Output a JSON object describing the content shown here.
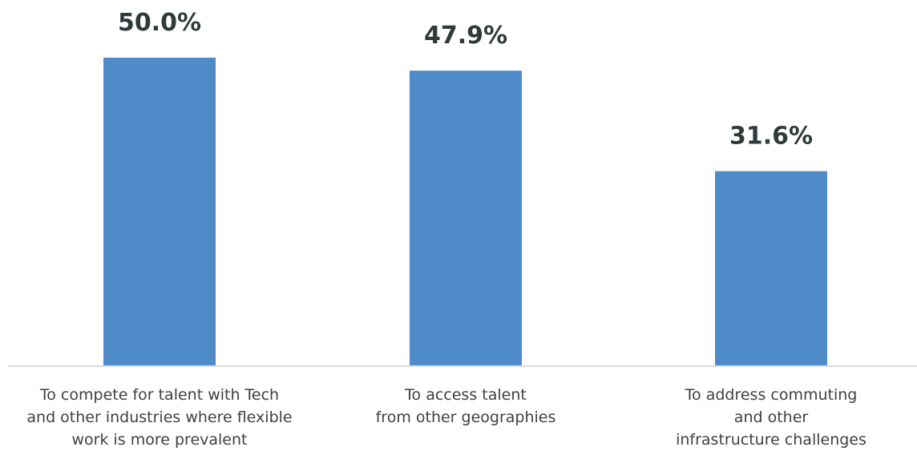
{
  "chart_data": {
    "type": "bar",
    "title": "",
    "xlabel": "",
    "ylabel": "",
    "ylim": [
      0,
      50.0
    ],
    "grid": false,
    "legend": "none",
    "bar_color": "#4f8bc9",
    "label_color": "#2f3a3a",
    "categories": [
      [
        "To compete for talent with Tech",
        "and other industries where flexible",
        "work is more prevalent"
      ],
      [
        "To access talent",
        "from other geographies"
      ],
      [
        "To address commuting",
        "and other",
        "infrastructure challenges"
      ]
    ],
    "values": [
      50.0,
      47.9,
      31.6
    ],
    "value_labels": [
      "50.0%",
      "47.9%",
      "31.6%"
    ]
  }
}
